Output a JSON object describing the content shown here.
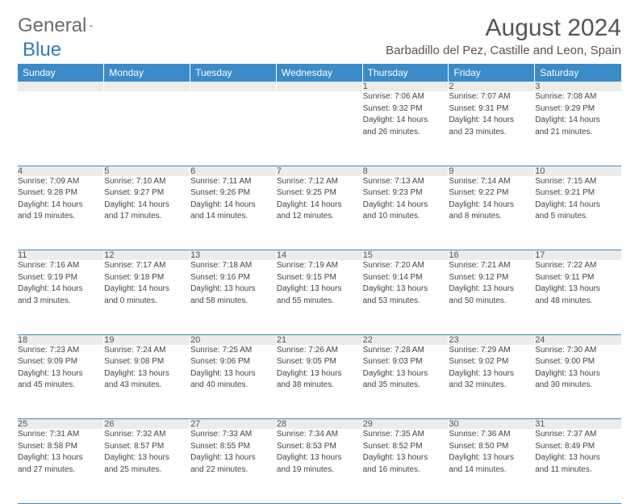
{
  "logo": {
    "text1": "General",
    "text2": "Blue"
  },
  "title": "August 2024",
  "location": "Barbadillo del Pez, Castille and Leon, Spain",
  "colors": {
    "header_bg": "#3b8bc8",
    "header_text": "#ffffff",
    "daynum_bg": "#ececec",
    "rule": "#3b8bc8"
  },
  "day_headers": [
    "Sunday",
    "Monday",
    "Tuesday",
    "Wednesday",
    "Thursday",
    "Friday",
    "Saturday"
  ],
  "weeks": [
    [
      null,
      null,
      null,
      null,
      {
        "n": "1",
        "sunrise": "7:06 AM",
        "sunset": "9:32 PM",
        "dl1": "Daylight: 14 hours",
        "dl2": "and 26 minutes."
      },
      {
        "n": "2",
        "sunrise": "7:07 AM",
        "sunset": "9:31 PM",
        "dl1": "Daylight: 14 hours",
        "dl2": "and 23 minutes."
      },
      {
        "n": "3",
        "sunrise": "7:08 AM",
        "sunset": "9:29 PM",
        "dl1": "Daylight: 14 hours",
        "dl2": "and 21 minutes."
      }
    ],
    [
      {
        "n": "4",
        "sunrise": "7:09 AM",
        "sunset": "9:28 PM",
        "dl1": "Daylight: 14 hours",
        "dl2": "and 19 minutes."
      },
      {
        "n": "5",
        "sunrise": "7:10 AM",
        "sunset": "9:27 PM",
        "dl1": "Daylight: 14 hours",
        "dl2": "and 17 minutes."
      },
      {
        "n": "6",
        "sunrise": "7:11 AM",
        "sunset": "9:26 PM",
        "dl1": "Daylight: 14 hours",
        "dl2": "and 14 minutes."
      },
      {
        "n": "7",
        "sunrise": "7:12 AM",
        "sunset": "9:25 PM",
        "dl1": "Daylight: 14 hours",
        "dl2": "and 12 minutes."
      },
      {
        "n": "8",
        "sunrise": "7:13 AM",
        "sunset": "9:23 PM",
        "dl1": "Daylight: 14 hours",
        "dl2": "and 10 minutes."
      },
      {
        "n": "9",
        "sunrise": "7:14 AM",
        "sunset": "9:22 PM",
        "dl1": "Daylight: 14 hours",
        "dl2": "and 8 minutes."
      },
      {
        "n": "10",
        "sunrise": "7:15 AM",
        "sunset": "9:21 PM",
        "dl1": "Daylight: 14 hours",
        "dl2": "and 5 minutes."
      }
    ],
    [
      {
        "n": "11",
        "sunrise": "7:16 AM",
        "sunset": "9:19 PM",
        "dl1": "Daylight: 14 hours",
        "dl2": "and 3 minutes."
      },
      {
        "n": "12",
        "sunrise": "7:17 AM",
        "sunset": "9:18 PM",
        "dl1": "Daylight: 14 hours",
        "dl2": "and 0 minutes."
      },
      {
        "n": "13",
        "sunrise": "7:18 AM",
        "sunset": "9:16 PM",
        "dl1": "Daylight: 13 hours",
        "dl2": "and 58 minutes."
      },
      {
        "n": "14",
        "sunrise": "7:19 AM",
        "sunset": "9:15 PM",
        "dl1": "Daylight: 13 hours",
        "dl2": "and 55 minutes."
      },
      {
        "n": "15",
        "sunrise": "7:20 AM",
        "sunset": "9:14 PM",
        "dl1": "Daylight: 13 hours",
        "dl2": "and 53 minutes."
      },
      {
        "n": "16",
        "sunrise": "7:21 AM",
        "sunset": "9:12 PM",
        "dl1": "Daylight: 13 hours",
        "dl2": "and 50 minutes."
      },
      {
        "n": "17",
        "sunrise": "7:22 AM",
        "sunset": "9:11 PM",
        "dl1": "Daylight: 13 hours",
        "dl2": "and 48 minutes."
      }
    ],
    [
      {
        "n": "18",
        "sunrise": "7:23 AM",
        "sunset": "9:09 PM",
        "dl1": "Daylight: 13 hours",
        "dl2": "and 45 minutes."
      },
      {
        "n": "19",
        "sunrise": "7:24 AM",
        "sunset": "9:08 PM",
        "dl1": "Daylight: 13 hours",
        "dl2": "and 43 minutes."
      },
      {
        "n": "20",
        "sunrise": "7:25 AM",
        "sunset": "9:06 PM",
        "dl1": "Daylight: 13 hours",
        "dl2": "and 40 minutes."
      },
      {
        "n": "21",
        "sunrise": "7:26 AM",
        "sunset": "9:05 PM",
        "dl1": "Daylight: 13 hours",
        "dl2": "and 38 minutes."
      },
      {
        "n": "22",
        "sunrise": "7:28 AM",
        "sunset": "9:03 PM",
        "dl1": "Daylight: 13 hours",
        "dl2": "and 35 minutes."
      },
      {
        "n": "23",
        "sunrise": "7:29 AM",
        "sunset": "9:02 PM",
        "dl1": "Daylight: 13 hours",
        "dl2": "and 32 minutes."
      },
      {
        "n": "24",
        "sunrise": "7:30 AM",
        "sunset": "9:00 PM",
        "dl1": "Daylight: 13 hours",
        "dl2": "and 30 minutes."
      }
    ],
    [
      {
        "n": "25",
        "sunrise": "7:31 AM",
        "sunset": "8:58 PM",
        "dl1": "Daylight: 13 hours",
        "dl2": "and 27 minutes."
      },
      {
        "n": "26",
        "sunrise": "7:32 AM",
        "sunset": "8:57 PM",
        "dl1": "Daylight: 13 hours",
        "dl2": "and 25 minutes."
      },
      {
        "n": "27",
        "sunrise": "7:33 AM",
        "sunset": "8:55 PM",
        "dl1": "Daylight: 13 hours",
        "dl2": "and 22 minutes."
      },
      {
        "n": "28",
        "sunrise": "7:34 AM",
        "sunset": "8:53 PM",
        "dl1": "Daylight: 13 hours",
        "dl2": "and 19 minutes."
      },
      {
        "n": "29",
        "sunrise": "7:35 AM",
        "sunset": "8:52 PM",
        "dl1": "Daylight: 13 hours",
        "dl2": "and 16 minutes."
      },
      {
        "n": "30",
        "sunrise": "7:36 AM",
        "sunset": "8:50 PM",
        "dl1": "Daylight: 13 hours",
        "dl2": "and 14 minutes."
      },
      {
        "n": "31",
        "sunrise": "7:37 AM",
        "sunset": "8:49 PM",
        "dl1": "Daylight: 13 hours",
        "dl2": "and 11 minutes."
      }
    ]
  ],
  "labels": {
    "sunrise": "Sunrise: ",
    "sunset": "Sunset: "
  }
}
